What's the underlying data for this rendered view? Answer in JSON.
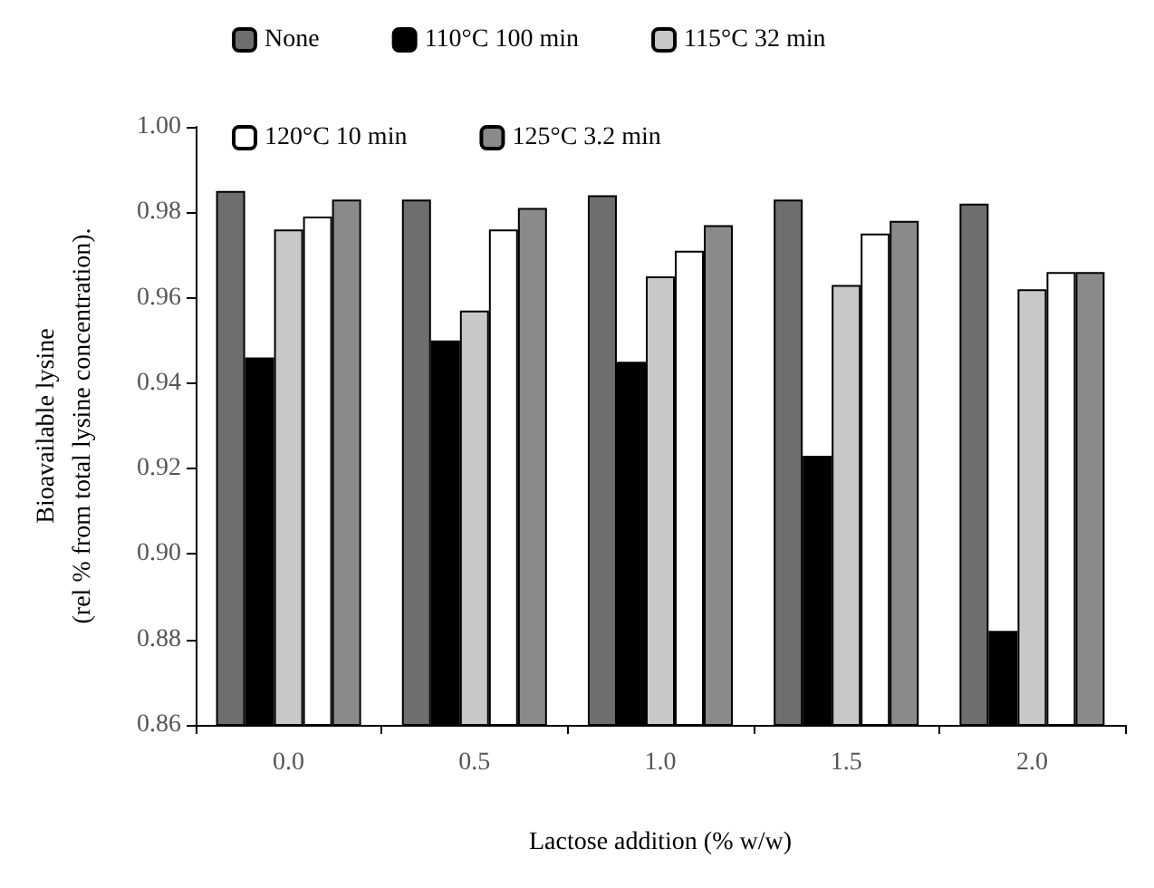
{
  "chart_data": {
    "type": "bar",
    "xlabel": "Lactose addition (% w/w)",
    "ylabel": "Bioavailable lysine\n(rel % from total lysine concentration).",
    "categories": [
      "0.0",
      "0.5",
      "1.0",
      "1.5",
      "2.0"
    ],
    "series": [
      {
        "name": "None",
        "color": "#6e6e6e",
        "values": [
          0.985,
          0.983,
          0.984,
          0.983,
          0.982
        ]
      },
      {
        "name": "110°C 100 min",
        "color": "#000000",
        "values": [
          0.946,
          0.95,
          0.945,
          0.923,
          0.882
        ]
      },
      {
        "name": "115°C 32 min",
        "color": "#c8c8c8",
        "values": [
          0.976,
          0.957,
          0.965,
          0.963,
          0.962
        ]
      },
      {
        "name": "120°C 10 min",
        "color": "#ffffff",
        "values": [
          0.979,
          0.976,
          0.971,
          0.975,
          0.966
        ]
      },
      {
        "name": "125°C 3.2 min",
        "color": "#8a8a8a",
        "values": [
          0.983,
          0.981,
          0.977,
          0.978,
          0.966
        ]
      }
    ],
    "ylim": [
      0.86,
      1.0
    ],
    "yticks": [
      0.86,
      0.88,
      {
        "value": 0.9,
        "label": "0.90"
      },
      0.92,
      0.94,
      0.96,
      0.98,
      {
        "value": 1.0,
        "label": "1.00"
      }
    ],
    "legend": "top",
    "grid": false
  }
}
